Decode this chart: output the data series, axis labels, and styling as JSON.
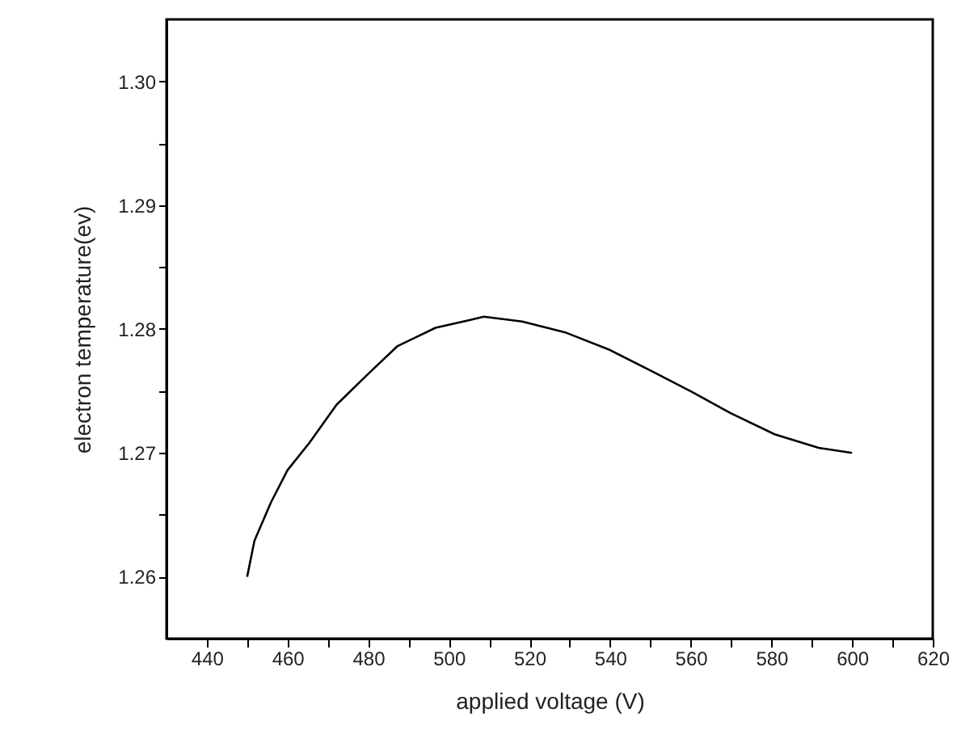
{
  "chart_data": {
    "type": "line",
    "xlabel": "applied voltage (V)",
    "ylabel": "electron temperature(ev)",
    "x": [
      450,
      451.8,
      455.9,
      460,
      465.4,
      472.2,
      480.4,
      487.2,
      496.7,
      504.9,
      508.7,
      518.2,
      529.1,
      540,
      550.9,
      560.4,
      569.9,
      580.8,
      591.7,
      600
    ],
    "series": [
      {
        "color": "#000000",
        "values": [
          1.26,
          1.2629,
          1.266,
          1.2686,
          1.2708,
          1.2739,
          1.2765,
          1.2786,
          1.2801,
          1.2807,
          1.281,
          1.2806,
          1.2797,
          1.2783,
          1.2765,
          1.2749,
          1.2732,
          1.2715,
          1.2704,
          1.27
        ]
      }
    ],
    "xlim": [
      430,
      620
    ],
    "ylim": [
      1.255,
      1.305
    ],
    "xticks": [
      440,
      {
        "value": 450,
        "label": null
      },
      460,
      {
        "value": 470,
        "label": null
      },
      480,
      {
        "value": 490,
        "label": null
      },
      500,
      {
        "value": 510,
        "label": null
      },
      520,
      {
        "value": 530,
        "label": null
      },
      540,
      {
        "value": 550,
        "label": null
      },
      560,
      {
        "value": 570,
        "label": null
      },
      580,
      {
        "value": 590,
        "label": null
      },
      600,
      {
        "value": 610,
        "label": null
      },
      620
    ],
    "yticks": [
      {
        "value": 1.26,
        "label": "1.26"
      },
      {
        "value": 1.265,
        "label": null
      },
      {
        "value": 1.27,
        "label": "1.27"
      },
      {
        "value": 1.275,
        "label": null
      },
      {
        "value": 1.28,
        "label": "1.28"
      },
      {
        "value": 1.285,
        "label": null
      },
      {
        "value": 1.29,
        "label": "1.29"
      },
      {
        "value": 1.295,
        "label": null
      },
      {
        "value": 1.3,
        "label": "1.30"
      }
    ],
    "grid": false,
    "legend": false,
    "marker": "none",
    "line_style": "solid"
  }
}
